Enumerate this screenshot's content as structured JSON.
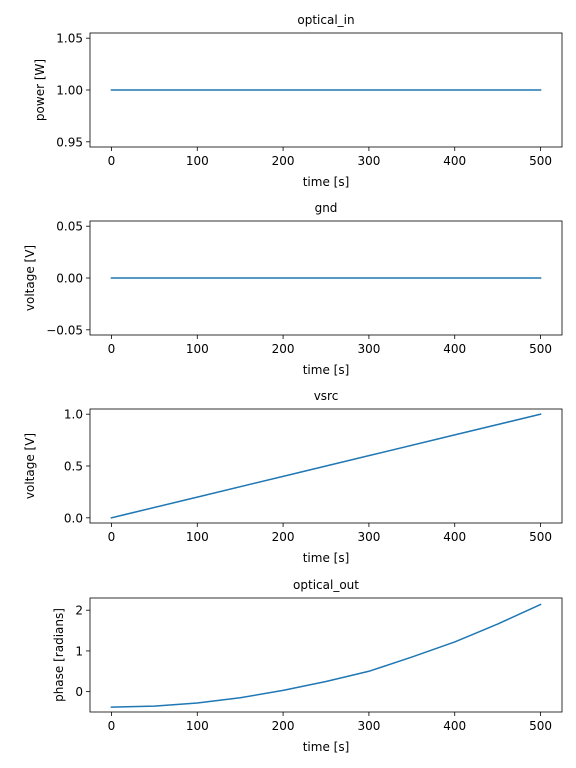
{
  "chart_data": [
    {
      "type": "line",
      "title": "optical_in",
      "xlabel": "time [s]",
      "ylabel": "power [W]",
      "xlim": [
        -25,
        525
      ],
      "ylim": [
        0.945,
        1.055
      ],
      "xticks": [
        0,
        100,
        200,
        300,
        400,
        500
      ],
      "xtick_labels": [
        "0",
        "100",
        "200",
        "300",
        "400",
        "500"
      ],
      "yticks": [
        0.95,
        1.0,
        1.05
      ],
      "ytick_labels": [
        "0.95",
        "1.00",
        "1.05"
      ],
      "grid": false,
      "color": "#1f77b4",
      "series": [
        {
          "x": [
            0,
            100,
            200,
            300,
            400,
            500
          ],
          "y": [
            1.0,
            1.0,
            1.0,
            1.0,
            1.0,
            1.0
          ]
        }
      ]
    },
    {
      "type": "line",
      "title": "gnd",
      "xlabel": "time [s]",
      "ylabel": "voltage [V]",
      "xlim": [
        -25,
        525
      ],
      "ylim": [
        -0.055,
        0.055
      ],
      "xticks": [
        0,
        100,
        200,
        300,
        400,
        500
      ],
      "xtick_labels": [
        "0",
        "100",
        "200",
        "300",
        "400",
        "500"
      ],
      "yticks": [
        -0.05,
        0.0,
        0.05
      ],
      "ytick_labels": [
        "−0.05",
        "0.00",
        "0.05"
      ],
      "grid": false,
      "color": "#1f77b4",
      "series": [
        {
          "x": [
            0,
            100,
            200,
            300,
            400,
            500
          ],
          "y": [
            0,
            0,
            0,
            0,
            0,
            0
          ]
        }
      ]
    },
    {
      "type": "line",
      "title": "vsrc",
      "xlabel": "time [s]",
      "ylabel": "voltage [V]",
      "xlim": [
        -25,
        525
      ],
      "ylim": [
        -0.05,
        1.05
      ],
      "xticks": [
        0,
        100,
        200,
        300,
        400,
        500
      ],
      "xtick_labels": [
        "0",
        "100",
        "200",
        "300",
        "400",
        "500"
      ],
      "yticks": [
        0.0,
        0.5,
        1.0
      ],
      "ytick_labels": [
        "0.0",
        "0.5",
        "1.0"
      ],
      "grid": false,
      "color": "#1f77b4",
      "series": [
        {
          "x": [
            0,
            100,
            200,
            300,
            400,
            500
          ],
          "y": [
            0.0,
            0.2,
            0.4,
            0.6,
            0.8,
            1.0
          ]
        }
      ]
    },
    {
      "type": "line",
      "title": "optical_out",
      "xlabel": "time [s]",
      "ylabel": "phase [radians]",
      "xlim": [
        -25,
        525
      ],
      "ylim": [
        -0.5,
        2.3
      ],
      "xticks": [
        0,
        100,
        200,
        300,
        400,
        500
      ],
      "xtick_labels": [
        "0",
        "100",
        "200",
        "300",
        "400",
        "500"
      ],
      "yticks": [
        0,
        1,
        2
      ],
      "ytick_labels": [
        "0",
        "1",
        "2"
      ],
      "grid": false,
      "color": "#1f77b4",
      "series": [
        {
          "x": [
            0,
            50,
            100,
            150,
            200,
            250,
            300,
            350,
            400,
            450,
            500
          ],
          "y": [
            -0.38,
            -0.355,
            -0.28,
            -0.15,
            0.03,
            0.25,
            0.5,
            0.85,
            1.22,
            1.66,
            2.14
          ]
        }
      ]
    }
  ]
}
